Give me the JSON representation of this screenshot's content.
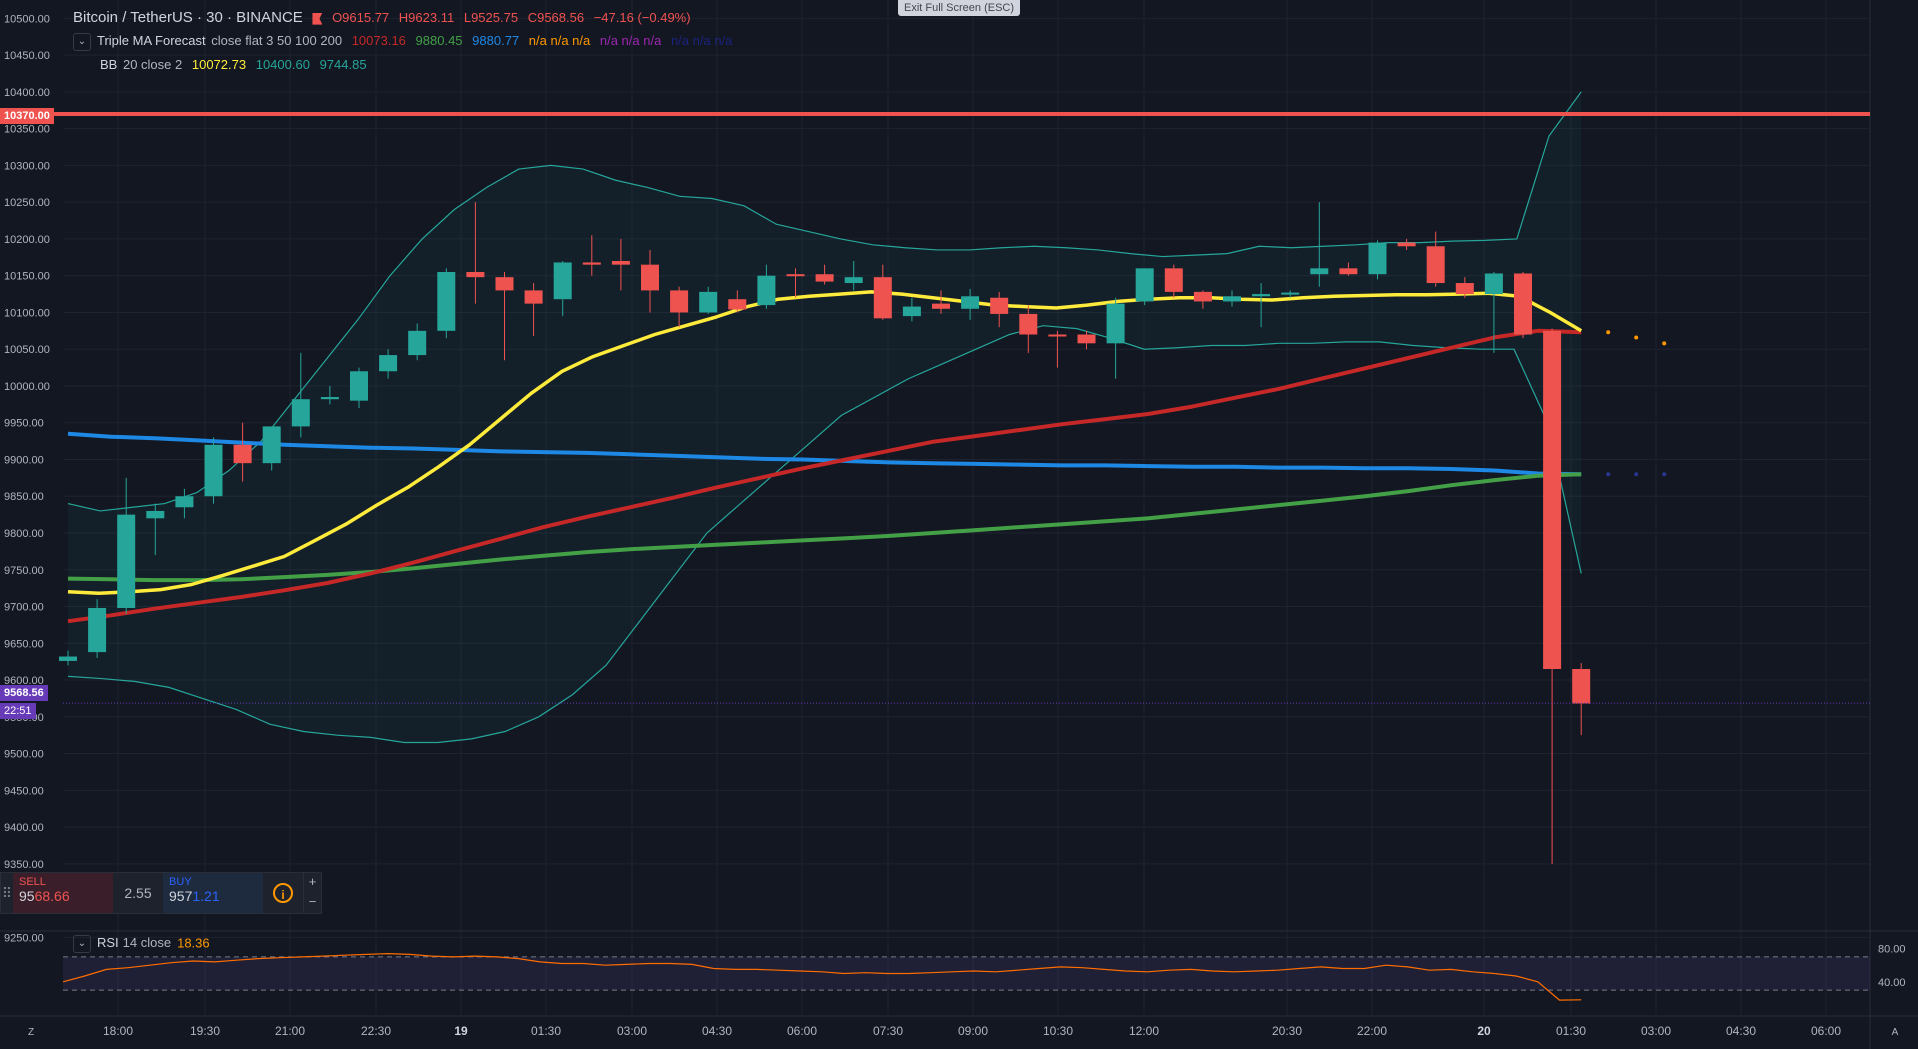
{
  "header": {
    "symbol": "Bitcoin / TetherUS · 30 · BINANCE",
    "open": "O9615.77",
    "high": "H9623.11",
    "low": "L9525.75",
    "close": "C9568.56",
    "change": "−47.16 (−0.49%)",
    "exit_fullscreen": "Exit Full Screen (ESC)"
  },
  "indicators": {
    "triple_ma": {
      "name": "Triple MA Forecast",
      "params": "close flat 3 50 100 200",
      "v1": "10073.16",
      "v2": "9880.45",
      "v3": "9880.77",
      "na_orange": "n/a n/a n/a",
      "na_purple": "n/a n/a n/a",
      "na_blue": "n/a n/a n/a"
    },
    "bb": {
      "name": "BB",
      "params": "20 close 2",
      "basis": "10072.73",
      "upper": "10400.60",
      "lower": "9744.85"
    },
    "rsi": {
      "name": "RSI",
      "params": "14 close",
      "value": "18.36"
    }
  },
  "price_axis": {
    "labels": [
      "10500.00",
      "10450.00",
      "10400.00",
      "10350.00",
      "10300.00",
      "10250.00",
      "10200.00",
      "10150.00",
      "10100.00",
      "10050.00",
      "10000.00",
      "9950.00",
      "9900.00",
      "9850.00",
      "9800.00",
      "9750.00",
      "9700.00",
      "9650.00",
      "9600.00",
      "9550.00",
      "9500.00",
      "9450.00",
      "9400.00",
      "9350.00",
      "9250.00"
    ],
    "alert_line_label": "10370.00",
    "last_price_label": "9568.56",
    "countdown_label": "22:51"
  },
  "rsi_axis": {
    "labels": [
      "80.00",
      "40.00"
    ]
  },
  "time_axis": {
    "labels": [
      "18:00",
      "19:30",
      "21:00",
      "22:30",
      "19",
      "01:30",
      "03:00",
      "04:30",
      "06:00",
      "07:30",
      "09:00",
      "10:30",
      "12:00",
      "20:30",
      "22:00",
      "20",
      "01:30",
      "03:00",
      "04:30",
      "06:00"
    ]
  },
  "trade_panel": {
    "sell_label": "SELL",
    "sell_price_main": "95",
    "sell_price_accent": "68.66",
    "spread": "2.55",
    "buy_label": "BUY",
    "buy_price_main": "957",
    "buy_price_accent": "1.21",
    "info": "i",
    "plus": "+",
    "minus": "−"
  },
  "corner_buttons": {
    "left": "Z",
    "right": "A"
  },
  "colors": {
    "background": "#131722",
    "up": "#26a69a",
    "down": "#ef5350",
    "ma_fast": "#ffeb3b",
    "ma_mid": "#c62828",
    "ma_slow_green": "#43a047",
    "ma_slow_blue": "#1e88e5",
    "bb": "#26a69a",
    "rsi": "#ff6d00",
    "alert": "#ef5350"
  },
  "chart_data": {
    "type": "candlestick",
    "title": "Bitcoin / TetherUS · 30 · BINANCE",
    "ylim": [
      9260,
      10525
    ],
    "candles": [
      {
        "o": 9626,
        "h": 9640,
        "l": 9620,
        "c": 9632
      },
      {
        "o": 9638,
        "h": 9710,
        "l": 9630,
        "c": 9698
      },
      {
        "o": 9698,
        "h": 9875,
        "l": 9690,
        "c": 9825
      },
      {
        "o": 9820,
        "h": 9840,
        "l": 9770,
        "c": 9830
      },
      {
        "o": 9835,
        "h": 9860,
        "l": 9820,
        "c": 9850
      },
      {
        "o": 9850,
        "h": 9930,
        "l": 9840,
        "c": 9920
      },
      {
        "o": 9920,
        "h": 9950,
        "l": 9870,
        "c": 9895
      },
      {
        "o": 9895,
        "h": 9945,
        "l": 9885,
        "c": 9945
      },
      {
        "o": 9945,
        "h": 10045,
        "l": 9930,
        "c": 9982
      },
      {
        "o": 9982,
        "h": 10000,
        "l": 9975,
        "c": 9985
      },
      {
        "o": 9980,
        "h": 10025,
        "l": 9970,
        "c": 10020
      },
      {
        "o": 10020,
        "h": 10050,
        "l": 10010,
        "c": 10042
      },
      {
        "o": 10042,
        "h": 10085,
        "l": 10035,
        "c": 10075
      },
      {
        "o": 10075,
        "h": 10160,
        "l": 10065,
        "c": 10155
      },
      {
        "o": 10155,
        "h": 10250,
        "l": 10112,
        "c": 10148
      },
      {
        "o": 10148,
        "h": 10155,
        "l": 10035,
        "c": 10130
      },
      {
        "o": 10130,
        "h": 10140,
        "l": 10068,
        "c": 10112
      },
      {
        "o": 10118,
        "h": 10170,
        "l": 10095,
        "c": 10168
      },
      {
        "o": 10168,
        "h": 10205,
        "l": 10150,
        "c": 10165
      },
      {
        "o": 10170,
        "h": 10200,
        "l": 10130,
        "c": 10165
      },
      {
        "o": 10165,
        "h": 10185,
        "l": 10100,
        "c": 10130
      },
      {
        "o": 10130,
        "h": 10135,
        "l": 10080,
        "c": 10100
      },
      {
        "o": 10100,
        "h": 10135,
        "l": 10098,
        "c": 10128
      },
      {
        "o": 10118,
        "h": 10130,
        "l": 10100,
        "c": 10104
      },
      {
        "o": 10110,
        "h": 10165,
        "l": 10105,
        "c": 10150
      },
      {
        "o": 10152,
        "h": 10160,
        "l": 10120,
        "c": 10150
      },
      {
        "o": 10152,
        "h": 10165,
        "l": 10138,
        "c": 10142
      },
      {
        "o": 10140,
        "h": 10170,
        "l": 10130,
        "c": 10148
      },
      {
        "o": 10148,
        "h": 10165,
        "l": 10090,
        "c": 10092
      },
      {
        "o": 10095,
        "h": 10120,
        "l": 10088,
        "c": 10108
      },
      {
        "o": 10112,
        "h": 10130,
        "l": 10098,
        "c": 10105
      },
      {
        "o": 10105,
        "h": 10132,
        "l": 10090,
        "c": 10122
      },
      {
        "o": 10120,
        "h": 10128,
        "l": 10080,
        "c": 10098
      },
      {
        "o": 10098,
        "h": 10110,
        "l": 10045,
        "c": 10070
      },
      {
        "o": 10070,
        "h": 10075,
        "l": 10025,
        "c": 10068
      },
      {
        "o": 10070,
        "h": 10075,
        "l": 10050,
        "c": 10058
      },
      {
        "o": 10058,
        "h": 10120,
        "l": 10010,
        "c": 10112
      },
      {
        "o": 10115,
        "h": 10160,
        "l": 10110,
        "c": 10160
      },
      {
        "o": 10160,
        "h": 10165,
        "l": 10120,
        "c": 10128
      },
      {
        "o": 10128,
        "h": 10130,
        "l": 10105,
        "c": 10115
      },
      {
        "o": 10115,
        "h": 10130,
        "l": 10108,
        "c": 10122
      },
      {
        "o": 10122,
        "h": 10140,
        "l": 10080,
        "c": 10125
      },
      {
        "o": 10125,
        "h": 10130,
        "l": 10120,
        "c": 10127
      },
      {
        "o": 10152,
        "h": 10250,
        "l": 10135,
        "c": 10160
      },
      {
        "o": 10160,
        "h": 10168,
        "l": 10150,
        "c": 10152
      },
      {
        "o": 10152,
        "h": 10198,
        "l": 10145,
        "c": 10195
      },
      {
        "o": 10195,
        "h": 10200,
        "l": 10185,
        "c": 10190
      },
      {
        "o": 10190,
        "h": 10210,
        "l": 10135,
        "c": 10140
      },
      {
        "o": 10140,
        "h": 10148,
        "l": 10120,
        "c": 10125
      },
      {
        "o": 10125,
        "h": 10155,
        "l": 10045,
        "c": 10153
      },
      {
        "o": 10153,
        "h": 10155,
        "l": 10065,
        "c": 10070
      },
      {
        "o": 10075,
        "h": 10078,
        "l": 9350,
        "c": 9615
      },
      {
        "o": 9615,
        "h": 9623,
        "l": 9525,
        "c": 9568
      }
    ],
    "ma_fast": [
      9720,
      9718,
      9720,
      9723,
      9730,
      9742,
      9755,
      9768,
      9790,
      9812,
      9838,
      9862,
      9890,
      9920,
      9955,
      9990,
      10020,
      10040,
      10055,
      10070,
      10082,
      10094,
      10108,
      10118,
      10122,
      10125,
      10128,
      10125,
      10120,
      10115,
      10110,
      10108,
      10106,
      10110,
      10115,
      10118,
      10120,
      10120,
      10118,
      10117,
      10120,
      10122,
      10123,
      10124,
      10124,
      10125,
      10126,
      10122,
      10100,
      10075
    ],
    "ma_mid": [
      9680,
      9688,
      9697,
      9705,
      9713,
      9722,
      9732,
      9745,
      9760,
      9776,
      9792,
      9808,
      9822,
      9835,
      9848,
      9862,
      9875,
      9888,
      9900,
      9912,
      9924,
      9932,
      9940,
      9948,
      9955,
      9962,
      9972,
      9984,
      9996,
      10010,
      10024,
      10038,
      10052,
      10066,
      10075,
      10073
    ],
    "ma_green": [
      9738,
      9737,
      9736,
      9736,
      9737,
      9740,
      9743,
      9747,
      9752,
      9758,
      9764,
      9769,
      9774,
      9778,
      9781,
      9784,
      9787,
      9790,
      9793,
      9796,
      9800,
      9804,
      9808,
      9812,
      9816,
      9820,
      9826,
      9832,
      9838,
      9844,
      9850,
      9857,
      9865,
      9872,
      9878,
      9880
    ],
    "ma_blue": [
      9935,
      9931,
      9929,
      9926,
      9923,
      9920,
      9918,
      9916,
      9915,
      9913,
      9911,
      9910,
      9909,
      9907,
      9905,
      9903,
      9901,
      9900,
      9898,
      9896,
      9895,
      9894,
      9893,
      9892,
      9892,
      9891,
      9890,
      9890,
      9889,
      9889,
      9888,
      9888,
      9887,
      9885,
      9881,
      9880
    ],
    "bb_upper": [
      9840,
      9830,
      9835,
      9840,
      9855,
      9885,
      9925,
      9980,
      10035,
      10090,
      10150,
      10200,
      10240,
      10270,
      10295,
      10300,
      10295,
      10280,
      10270,
      10258,
      10255,
      10245,
      10220,
      10210,
      10200,
      10192,
      10188,
      10185,
      10185,
      10188,
      10190,
      10188,
      10185,
      10180,
      10176,
      10178,
      10180,
      10190,
      10188,
      10190,
      10192,
      10195,
      10195,
      10197,
      10198,
      10200,
      10340,
      10400
    ],
    "bb_lower": [
      9605,
      9602,
      9598,
      9590,
      9575,
      9560,
      9540,
      9530,
      9525,
      9522,
      9515,
      9515,
      9520,
      9530,
      9550,
      9580,
      9620,
      9680,
      9740,
      9800,
      9840,
      9880,
      9920,
      9960,
      9985,
      10010,
      10030,
      10050,
      10070,
      10082,
      10078,
      10065,
      10050,
      10052,
      10055,
      10055,
      10058,
      10058,
      10060,
      10060,
      10055,
      10052,
      10050,
      10050,
      9950,
      9745
    ],
    "forecast_orange": [
      10073,
      10066,
      10058
    ],
    "forecast_blue": [
      9880,
      9880,
      9880
    ],
    "alert_price": 10370,
    "last_price": 9568.56,
    "rsi": {
      "ylim": [
        0,
        100
      ],
      "bands": [
        70,
        30
      ],
      "values": [
        40,
        47,
        55,
        57,
        60,
        63,
        65,
        64,
        66,
        68,
        69,
        70,
        71,
        72,
        73,
        74,
        73,
        71,
        70,
        71,
        70,
        68,
        64,
        62,
        62,
        60,
        61,
        62,
        62,
        61,
        56,
        55,
        55,
        54,
        53,
        52,
        50,
        51,
        50,
        50,
        51,
        52,
        53,
        52,
        54,
        56,
        58,
        57,
        55,
        53,
        52,
        54,
        55,
        53,
        52,
        53,
        54,
        56,
        58,
        56,
        56,
        60,
        58,
        54,
        55,
        52,
        50,
        47,
        40,
        18,
        18.36
      ]
    }
  }
}
